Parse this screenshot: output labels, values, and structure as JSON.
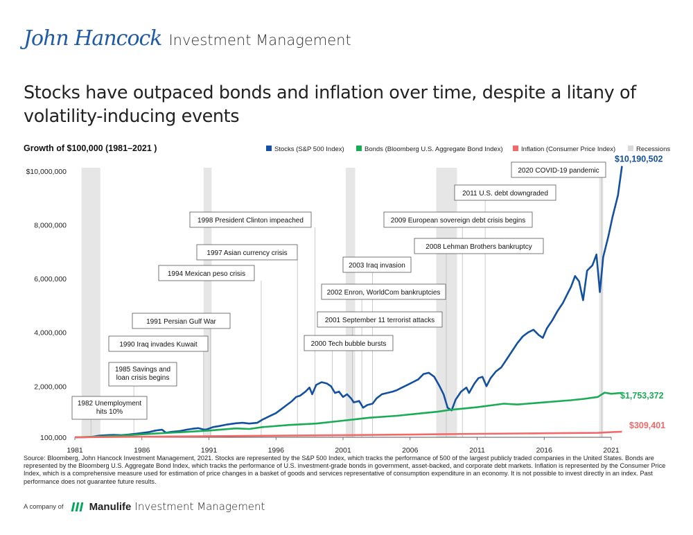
{
  "header": {
    "logo_script": "John Hancock",
    "logo_suffix": "Investment Management"
  },
  "title": "Stocks have outpaced bonds and inflation over time, despite a litany of volatility-inducing events",
  "footer": {
    "company_of": "A company of",
    "brand": "Manulife",
    "brand_suffix": "Investment Management"
  },
  "source_note": "Source: Bloomberg, John Hancock Investment Management, 2021. Stocks are represented by the S&P 500 Index, which tracks the performance of 500 of the largest publicly traded companies in the United States. Bonds are represented by the Bloomberg U.S. Aggregate Bond Index, which tracks the performance of U.S. investment-grade bonds in government, asset-backed, and corporate debt markets. Inflation is represented by the Consumer Price Index, which is a comprehensive measure used for estimation of price changes in a basket of goods and services representative of consumption expenditure in an economy. It is not possible to invest directly in an index. Past performance does not guarantee future results.",
  "chart_data": {
    "type": "line",
    "title": "Growth of $100,000 (1981–2021 )",
    "xlim": [
      1981,
      2021
    ],
    "ylim": [
      100000,
      10000000
    ],
    "y_ticks": [
      100000,
      2000000,
      4000000,
      6000000,
      8000000,
      10000000
    ],
    "y_tick_labels": [
      "100,000",
      "2,000,000",
      "4,000,000",
      "6,000,000",
      "8,000,000",
      "$10,000,000"
    ],
    "x_ticks": [
      1981,
      1986,
      1991,
      1996,
      2001,
      2006,
      2011,
      2016,
      2021
    ],
    "x_tick_labels": [
      "1981",
      "1986",
      "1991",
      "1996",
      "2001",
      "2006",
      "2011",
      "2016",
      "2021"
    ],
    "grid": false,
    "legend_position": "top-right",
    "legend": [
      {
        "label": "Stocks (S&P 500 Index)",
        "color": "#1450a0"
      },
      {
        "label": "Bonds (Bloomberg U.S. Aggregate Bond Index)",
        "color": "#1aac55"
      },
      {
        "label": "Inflation (Consumer Price Index)",
        "color": "#f06a6a"
      },
      {
        "label": "Recessions",
        "color": "#d9d9d9"
      }
    ],
    "recessions": [
      [
        1981.5,
        1982.9
      ],
      [
        1990.6,
        1991.2
      ],
      [
        2001.2,
        2001.9
      ],
      [
        2007.95,
        2009.5
      ],
      [
        2020.1,
        2020.4
      ]
    ],
    "series": [
      {
        "name": "Stocks (S&P 500 Index)",
        "color": "#1450a0",
        "end_label": "$10,190,502",
        "x": [
          1981,
          1981.6,
          1982.2,
          1982.8,
          1983.4,
          1983.9,
          1984.5,
          1985,
          1985.5,
          1986,
          1986.5,
          1987,
          1987.5,
          1987.8,
          1988.2,
          1988.8,
          1989.3,
          1989.8,
          1990.2,
          1990.6,
          1990.8,
          1991.3,
          1991.8,
          1992.4,
          1993,
          1993.5,
          1994,
          1994.6,
          1995,
          1995.5,
          1996,
          1996.4,
          1996.8,
          1997.2,
          1997.5,
          1997.8,
          1998.2,
          1998.5,
          1998.7,
          1999,
          1999.4,
          1999.8,
          2000.1,
          2000.4,
          2000.7,
          2001,
          2001.3,
          2001.6,
          2001.8,
          2002.2,
          2002.5,
          2002.8,
          2003.2,
          2003.5,
          2003.9,
          2004.3,
          2004.7,
          2005,
          2005.4,
          2005.8,
          2006.2,
          2006.6,
          2007,
          2007.4,
          2007.8,
          2008.2,
          2008.5,
          2008.8,
          2009.1,
          2009.4,
          2009.8,
          2010.2,
          2010.4,
          2010.8,
          2011.1,
          2011.4,
          2011.7,
          2012,
          2012.4,
          2012.8,
          2013.2,
          2013.6,
          2014,
          2014.4,
          2014.8,
          2015.2,
          2015.6,
          2015.9,
          2016.2,
          2016.6,
          2017,
          2017.4,
          2017.8,
          2018,
          2018.3,
          2018.6,
          2018.9,
          2019.2,
          2019.6,
          2019.9,
          2020.15,
          2020.4,
          2020.8,
          2021.1,
          2021.5,
          2021.8
        ],
        "y": [
          100000,
          100000,
          110000,
          160000,
          180000,
          190000,
          180000,
          200000,
          230000,
          260000,
          290000,
          350000,
          380000,
          270000,
          300000,
          330000,
          380000,
          420000,
          440000,
          390000,
          390000,
          480000,
          520000,
          580000,
          620000,
          640000,
          610000,
          640000,
          760000,
          880000,
          1000000,
          1150000,
          1300000,
          1450000,
          1600000,
          1650000,
          1800000,
          1950000,
          1700000,
          2050000,
          2150000,
          2100000,
          2000000,
          1750000,
          1800000,
          1600000,
          1700000,
          1550000,
          1400000,
          1450000,
          1200000,
          1300000,
          1350000,
          1550000,
          1700000,
          1750000,
          1800000,
          1850000,
          1950000,
          2050000,
          2150000,
          2250000,
          2450000,
          2500000,
          2350000,
          2000000,
          1700000,
          1200000,
          1100000,
          1500000,
          1800000,
          1950000,
          1750000,
          2100000,
          2300000,
          2350000,
          2000000,
          2300000,
          2550000,
          2700000,
          3000000,
          3300000,
          3600000,
          3850000,
          4000000,
          4100000,
          3900000,
          3800000,
          4150000,
          4450000,
          4800000,
          5100000,
          5500000,
          5700000,
          6100000,
          5900000,
          5200000,
          6300000,
          6500000,
          6900000,
          5500000,
          6800000,
          7600000,
          8300000,
          9100000,
          10190502
        ]
      },
      {
        "name": "Bonds (Bloomberg U.S. Aggregate Bond Index)",
        "color": "#1aac55",
        "end_label": "$1,753,372",
        "x": [
          1981,
          1983,
          1985,
          1987,
          1989,
          1991,
          1993,
          1994,
          1995,
          1997,
          1999,
          2001,
          2003,
          2005,
          2007,
          2008,
          2009,
          2011,
          2013,
          2014,
          2016,
          2018,
          2019,
          2020,
          2020.5,
          2021,
          2021.8
        ],
        "y": [
          100000,
          130000,
          180000,
          240000,
          290000,
          350000,
          430000,
          410000,
          480000,
          560000,
          610000,
          720000,
          830000,
          900000,
          1000000,
          1050000,
          1120000,
          1220000,
          1350000,
          1320000,
          1400000,
          1480000,
          1530000,
          1600000,
          1760000,
          1720000,
          1753372
        ]
      },
      {
        "name": "Inflation (Consumer Price Index)",
        "color": "#f06a6a",
        "end_label": "$309,401",
        "x": [
          1981,
          1986,
          1991,
          1996,
          2001,
          2006,
          2011,
          2016,
          2020,
          2021,
          2021.8
        ],
        "y": [
          100000,
          120000,
          140000,
          160000,
          180000,
          200000,
          230000,
          250000,
          265000,
          290000,
          309401
        ]
      }
    ],
    "annotations": [
      {
        "text": "1982 Unemployment\nhits 10%",
        "year": 1982.2
      },
      {
        "text": "1985 Savings and\nloan crisis begins",
        "year": 1985.4
      },
      {
        "text": "1990 Iraq invades Kuwait",
        "year": 1990.6
      },
      {
        "text": "1991 Persian Gulf War",
        "year": 1991.1
      },
      {
        "text": "1994 Mexican peso crisis",
        "year": 1994.9
      },
      {
        "text": "1997 Asian currency crisis",
        "year": 1997.6
      },
      {
        "text": "1998 President Clinton impeached",
        "year": 1998.9
      },
      {
        "text": "2000 Tech bubble bursts",
        "year": 2000.2
      },
      {
        "text": "2001 September 11 terrorist attacks",
        "year": 2001.7
      },
      {
        "text": "2002 Enron, WorldCom bankruptcies",
        "year": 2002.4
      },
      {
        "text": "2003 Iraq invasion",
        "year": 2003.2
      },
      {
        "text": "2008 Lehman Brothers bankruptcy",
        "year": 2008.7
      },
      {
        "text": "2009 European sovereign debt crisis begins",
        "year": 2009.9
      },
      {
        "text": "2011 U.S. debt downgraded",
        "year": 2011.6
      },
      {
        "text": "2020 COVID-19 pandemic",
        "year": 2020.3
      }
    ]
  }
}
